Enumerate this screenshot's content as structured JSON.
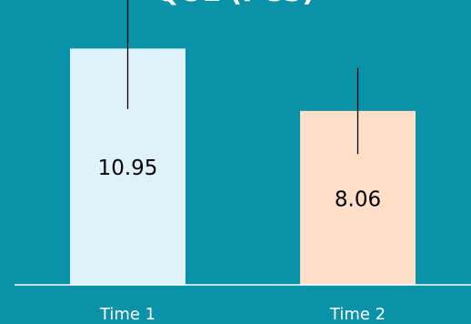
{
  "chart_data": {
    "type": "bar",
    "title": "QOL (PCS)",
    "categories": [
      "Time 1",
      "Time 2"
    ],
    "series": [
      {
        "values": [
          10.95,
          8.06
        ]
      }
    ],
    "error": [
      2.8,
      2.0
    ],
    "data_labels": [
      "10.95",
      "8.06"
    ],
    "bar_colors": [
      "#dff2fa",
      "#ffdfc8"
    ],
    "ylim": [
      0,
      13.2
    ],
    "grid": false,
    "legend": "none"
  },
  "colors": {
    "background": "#0a93a8",
    "axis": "#ffffff",
    "tick_label": "#ffffff",
    "data_label": "#000000",
    "error_bar": "#000000"
  }
}
